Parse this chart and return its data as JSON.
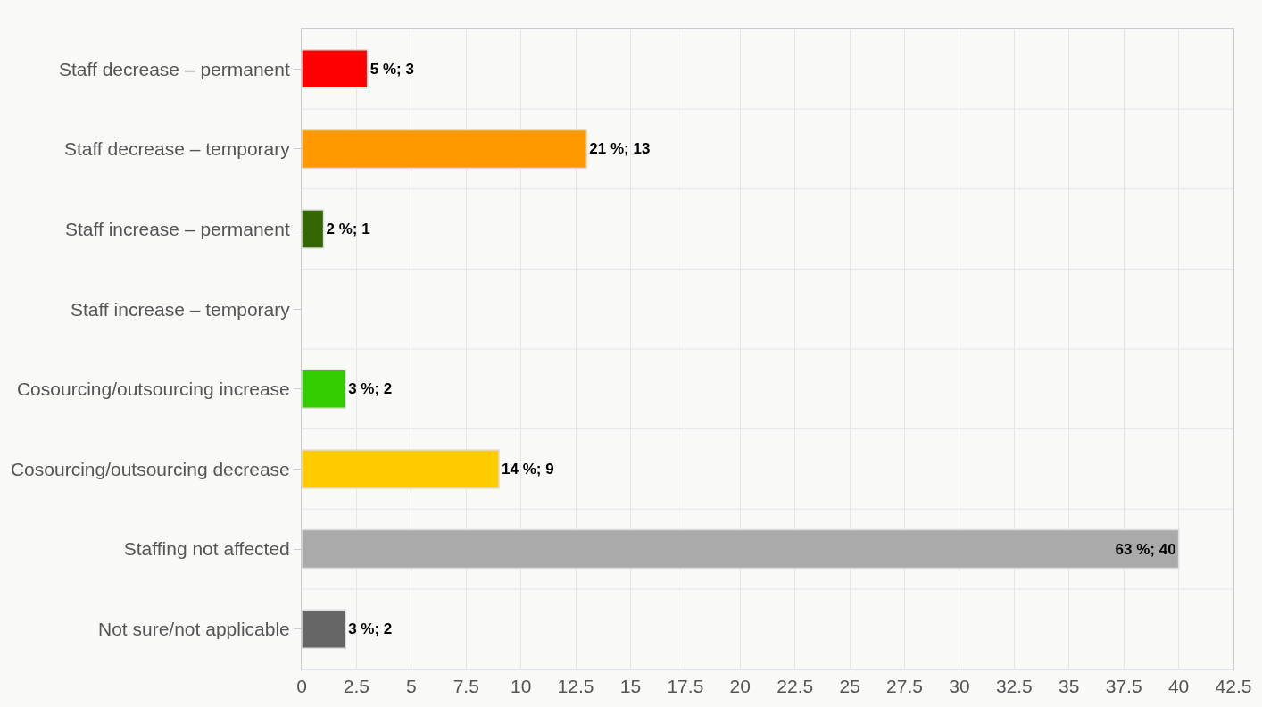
{
  "chart_data": {
    "type": "bar",
    "orientation": "horizontal",
    "categories": [
      "Staff decrease – permanent",
      "Staff decrease – temporary",
      "Staff increase – permanent",
      "Staff increase – temporary",
      "Cosourcing/outsourcing increase",
      "Cosourcing/outsourcing decrease",
      "Staffing not affected",
      "Not sure/not applicable"
    ],
    "values": [
      3,
      13,
      1,
      0,
      2,
      9,
      40,
      2
    ],
    "value_labels": [
      "5 %; 3",
      "21 %; 13",
      "2 %; 1",
      null,
      "3 %; 2",
      "14 %; 9",
      "63 %; 40",
      "3 %; 2"
    ],
    "colors": [
      "#ff0000",
      "#ff9900",
      "#336600",
      "#3366cc",
      "#33cc00",
      "#ffcc00",
      "#aaaaaa",
      "#666666"
    ],
    "xlim": [
      0,
      42.5
    ],
    "xticks": [
      0,
      2.5,
      5,
      7.5,
      10,
      12.5,
      15,
      17.5,
      20,
      22.5,
      25,
      27.5,
      30,
      32.5,
      35,
      37.5,
      40,
      42.5
    ],
    "grid": true,
    "legend": false
  }
}
